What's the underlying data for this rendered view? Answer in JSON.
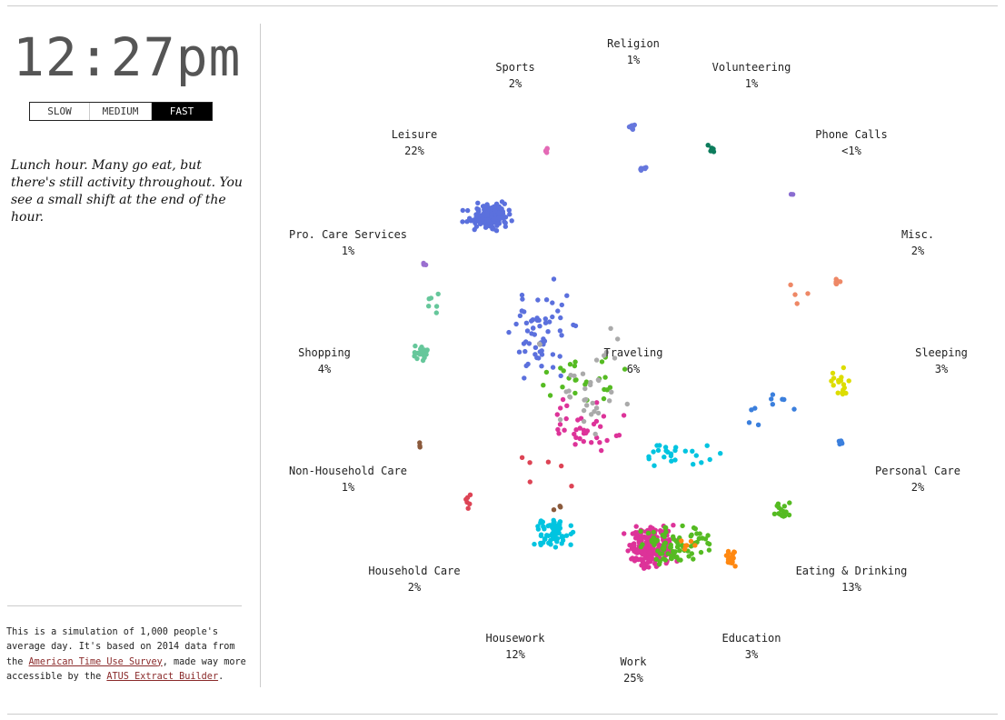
{
  "clock": "12:27pm",
  "speed": {
    "options": [
      "SLOW",
      "MEDIUM",
      "FAST"
    ],
    "selected": "FAST"
  },
  "description": "Lunch hour. Many go eat, but there's still activity throughout. You see a small shift at the end of the hour.",
  "footnote": {
    "before": "This is a simulation of 1,000 people's average day. It's based on 2014 data from the ",
    "link1": "American Time Use Survey",
    "middle": ", made way more accessible by the ",
    "link2": "ATUS Extract Builder",
    "after": "."
  },
  "activities": {
    "religion": {
      "name": "Religion",
      "pct": "1%",
      "color": "#6677dd"
    },
    "sports": {
      "name": "Sports",
      "pct": "2%",
      "color": "#e46ab6"
    },
    "volunteering": {
      "name": "Volunteering",
      "pct": "1%",
      "color": "#0c7c5c"
    },
    "leisure": {
      "name": "Leisure",
      "pct": "22%",
      "color": "#5b70dd"
    },
    "phone_calls": {
      "name": "Phone Calls",
      "pct": "<1%",
      "color": "#8a6dd1"
    },
    "pro_care": {
      "name": "Pro. Care Services",
      "pct": "1%",
      "color": "#9a6fd0"
    },
    "misc": {
      "name": "Misc.",
      "pct": "2%",
      "color": "#ee8866"
    },
    "shopping": {
      "name": "Shopping",
      "pct": "4%",
      "color": "#66c79b"
    },
    "traveling": {
      "name": "Traveling",
      "pct": "6%",
      "color": "#aaaaaa"
    },
    "sleeping": {
      "name": "Sleeping",
      "pct": "3%",
      "color": "#dddd00"
    },
    "non_household": {
      "name": "Non-Household Care",
      "pct": "1%",
      "color": "#8b5a3c"
    },
    "personal_care": {
      "name": "Personal Care",
      "pct": "2%",
      "color": "#3b7fdd"
    },
    "household_care": {
      "name": "Household Care",
      "pct": "2%",
      "color": "#00c4e0"
    },
    "eating": {
      "name": "Eating & Drinking",
      "pct": "13%",
      "color": "#55bb22"
    },
    "housework": {
      "name": "Housework",
      "pct": "12%",
      "color": "#dd4455"
    },
    "education": {
      "name": "Education",
      "pct": "3%",
      "color": "#ff8811"
    },
    "work": {
      "name": "Work",
      "pct": "25%",
      "color": "#dd3399"
    }
  }
}
